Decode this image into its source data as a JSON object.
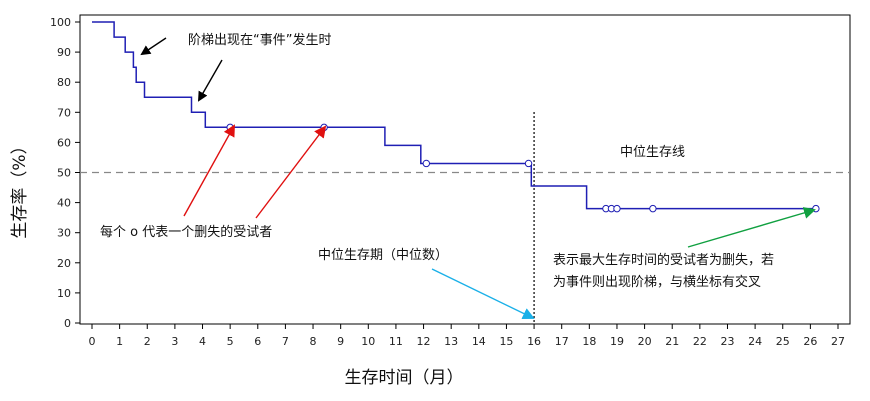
{
  "chart_data": {
    "type": "line",
    "xlabel": "生存时间（月）",
    "ylabel": "生存率（%）",
    "xlim": [
      0,
      27
    ],
    "ylim": [
      0,
      100
    ],
    "x_ticks": [
      0,
      1,
      2,
      3,
      4,
      5,
      6,
      7,
      8,
      9,
      10,
      11,
      12,
      13,
      14,
      15,
      16,
      17,
      18,
      19,
      20,
      21,
      22,
      23,
      24,
      25,
      26,
      27
    ],
    "y_ticks": [
      0,
      10,
      20,
      30,
      40,
      50,
      60,
      70,
      80,
      90,
      100
    ],
    "grid": false,
    "series": [
      {
        "color": "#1f1fb4",
        "step_points": [
          [
            0,
            100
          ],
          [
            0.8,
            100
          ],
          [
            0.8,
            95
          ],
          [
            1.2,
            95
          ],
          [
            1.2,
            90
          ],
          [
            1.5,
            90
          ],
          [
            1.5,
            85
          ],
          [
            1.6,
            85
          ],
          [
            1.6,
            80
          ],
          [
            1.9,
            80
          ],
          [
            1.9,
            75
          ],
          [
            3.6,
            75
          ],
          [
            3.6,
            70
          ],
          [
            4.1,
            70
          ],
          [
            4.1,
            65
          ],
          [
            10.6,
            65
          ],
          [
            10.6,
            59
          ],
          [
            11.9,
            59
          ],
          [
            11.9,
            53
          ],
          [
            15.9,
            53
          ],
          [
            15.9,
            45.5
          ],
          [
            17.9,
            45.5
          ],
          [
            17.9,
            38
          ],
          [
            26.2,
            38
          ]
        ],
        "censored": [
          [
            5.0,
            65
          ],
          [
            8.4,
            65
          ],
          [
            12.1,
            53
          ],
          [
            15.8,
            53
          ],
          [
            18.6,
            38
          ],
          [
            18.8,
            38
          ],
          [
            19.0,
            38
          ],
          [
            20.3,
            38
          ],
          [
            26.2,
            38
          ]
        ]
      }
    ],
    "median_line": {
      "y": 50,
      "label": "中位生存线",
      "color": "#888888"
    },
    "median_time": {
      "x": 16,
      "color": "#000000"
    },
    "annotations": {
      "steps": "阶梯出现在“事件”发生时",
      "censored": "每个 o 代表一个删失的受试者",
      "median_period": "中位生存期（中位数）",
      "max_line1": "表示最大生存时间的受试者为删失，若",
      "max_line2": "为事件则出现阶梯，与横坐标有交叉"
    }
  }
}
